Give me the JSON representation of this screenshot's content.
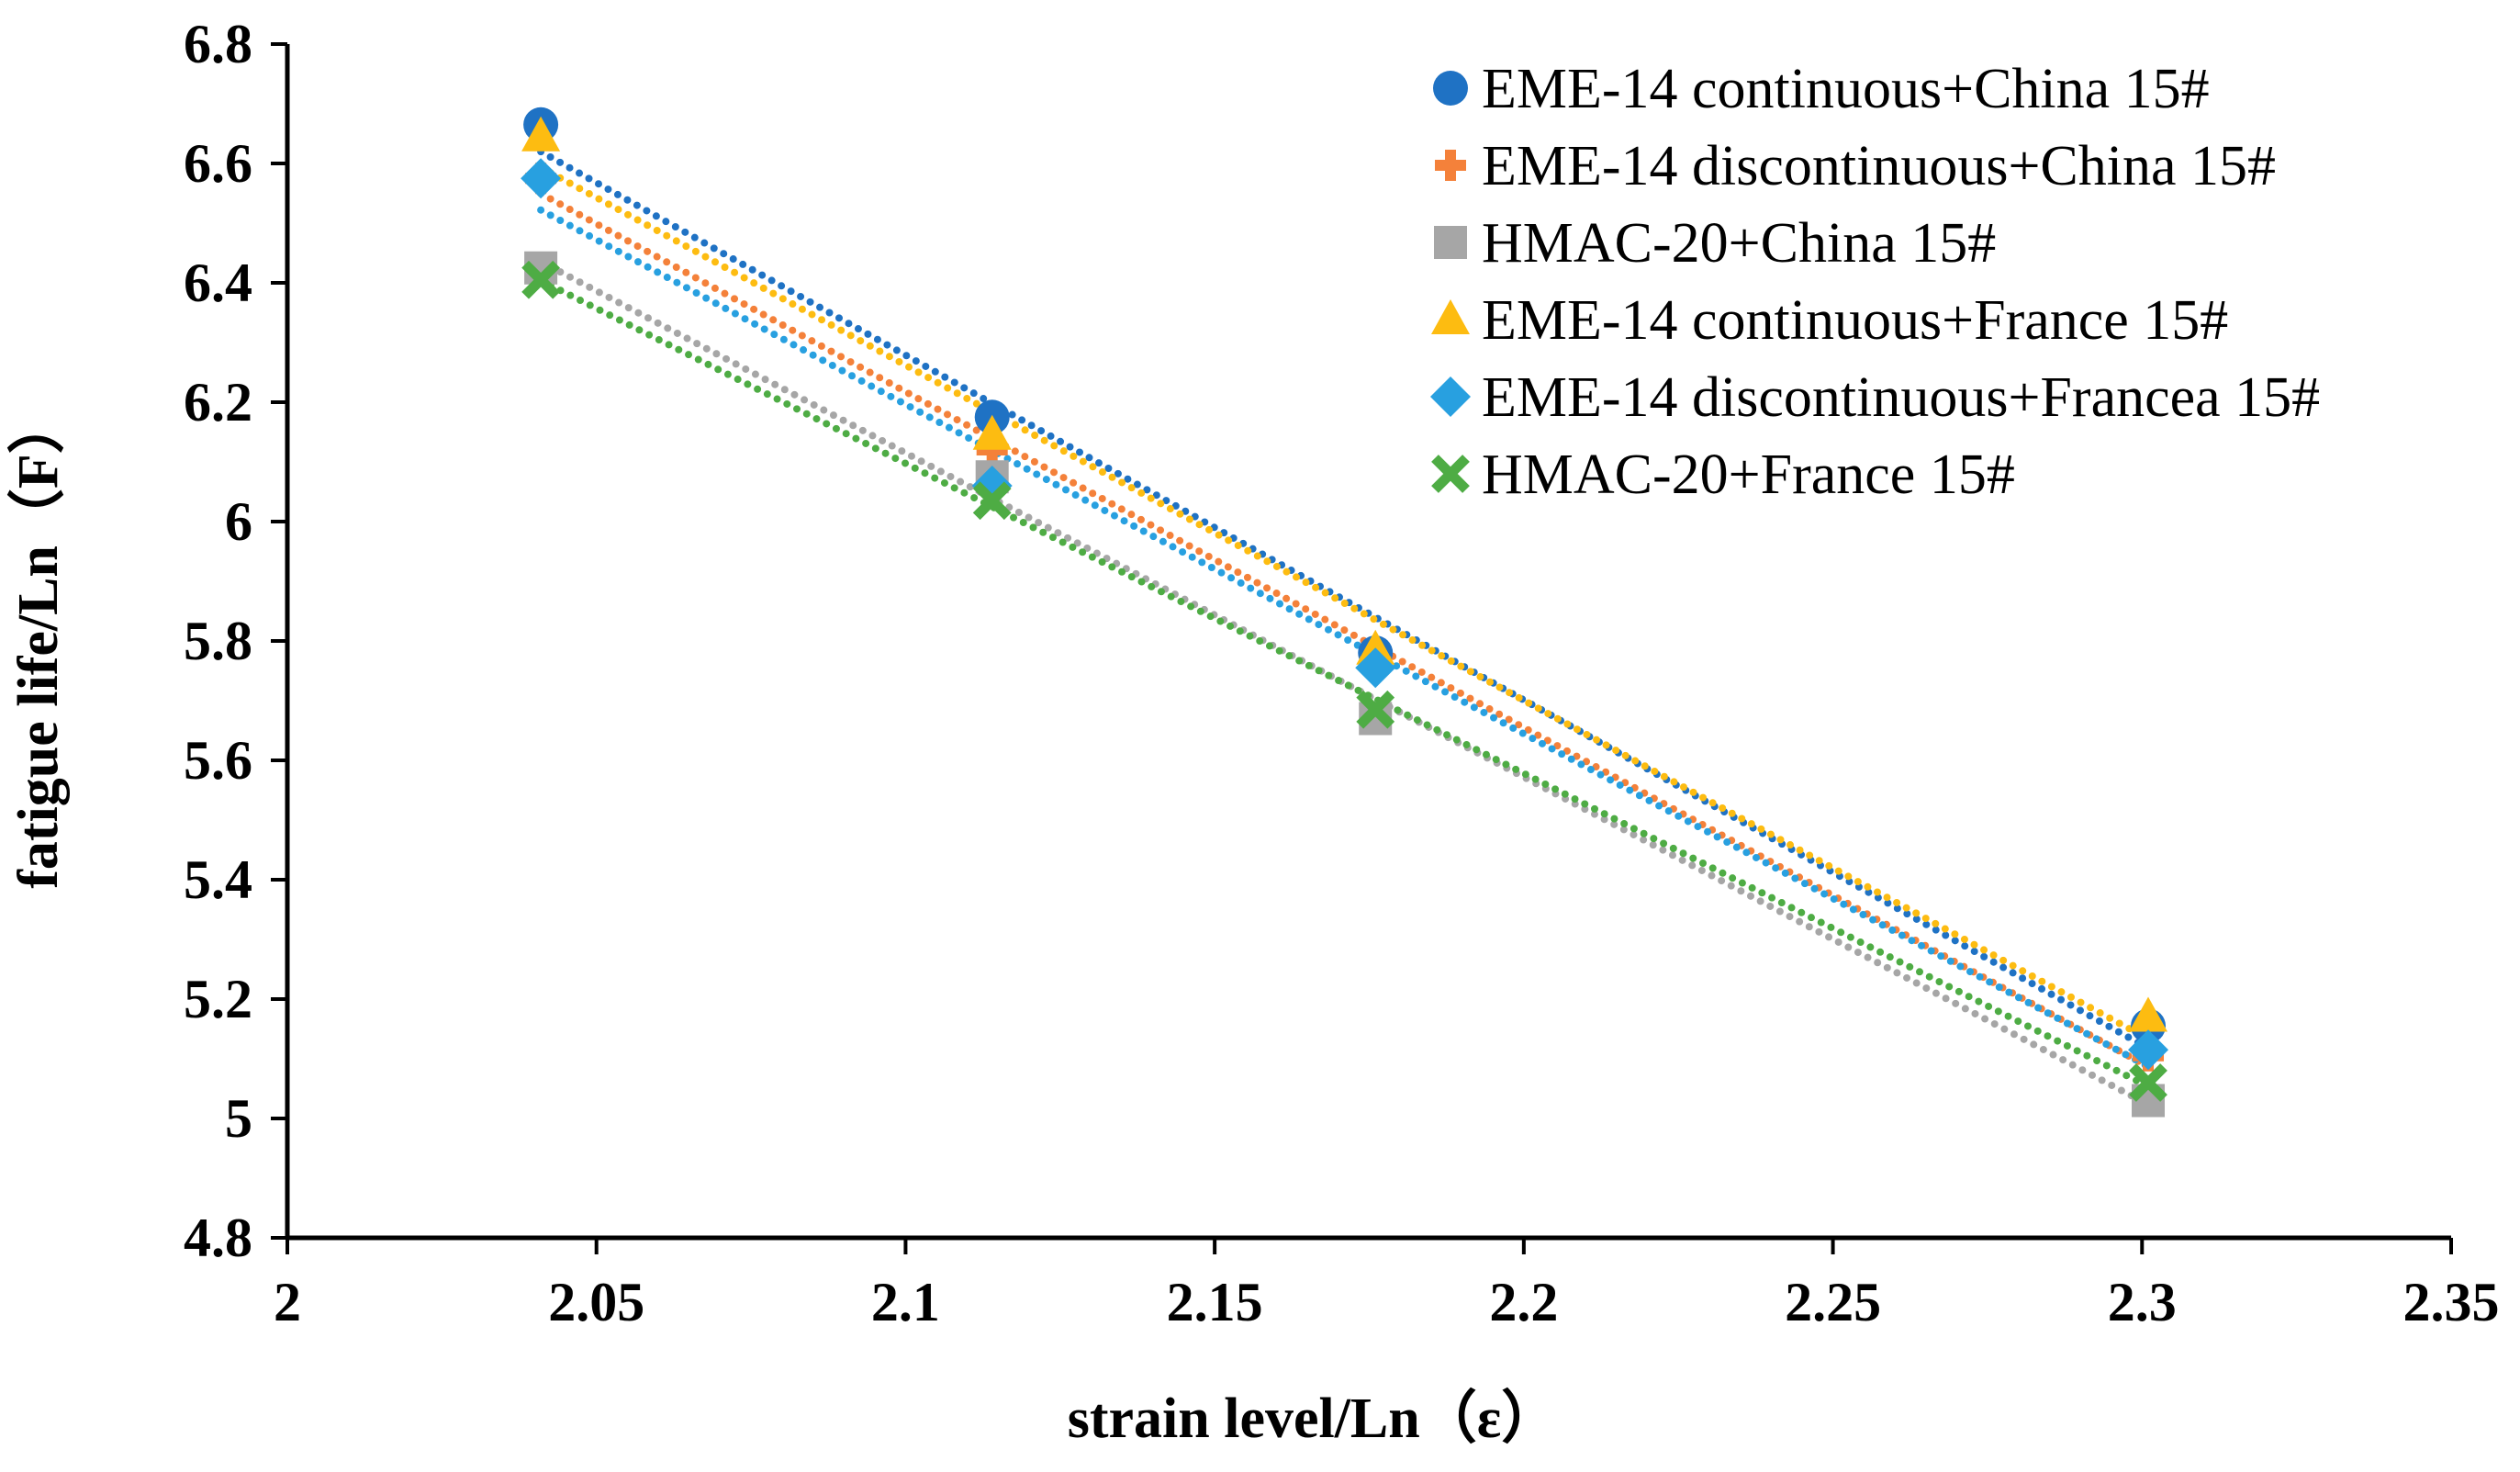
{
  "chart_data": {
    "type": "scatter",
    "title": "",
    "xlabel": "strain level/Ln（ε）",
    "ylabel": "fatigue life/Ln（F）",
    "xlim": [
      2,
      2.35
    ],
    "ylim": [
      4.8,
      6.8
    ],
    "x_ticks": [
      "2",
      "2.05",
      "2.1",
      "2.15",
      "2.2",
      "2.25",
      "2.3",
      "2.35"
    ],
    "y_ticks": [
      "4.8",
      "5",
      "5.2",
      "5.4",
      "5.6",
      "5.8",
      "6",
      "6.2",
      "6.4",
      "6.6",
      "6.8"
    ],
    "x": [
      2.041,
      2.114,
      2.176,
      2.301
    ],
    "legend_position": "top-right",
    "trendline": "linear, dotted",
    "series": [
      {
        "name": "EME-14 continuous+China 15#",
        "marker": "circle",
        "color": "#1f72c4",
        "values": [
          6.665,
          6.175,
          5.78,
          5.155
        ]
      },
      {
        "name": "EME-14 discontinuous+China 15#",
        "marker": "plus",
        "color": "#f4813a",
        "values": [
          6.575,
          6.12,
          5.765,
          5.105
        ]
      },
      {
        "name": "HMAC-20+China 15#",
        "marker": "square",
        "color": "#a6a6a6",
        "values": [
          6.425,
          6.075,
          5.67,
          5.03
        ]
      },
      {
        "name": "EME-14 continuous+France 15#",
        "marker": "triangle",
        "color": "#fdbc11",
        "values": [
          6.645,
          6.145,
          5.785,
          5.17
        ]
      },
      {
        "name": "EME-14 discontinuous+Francea 15#",
        "marker": "diamond",
        "color": "#28a0e0",
        "values": [
          6.575,
          6.06,
          5.755,
          5.115
        ]
      },
      {
        "name": "HMAC-20+France 15#",
        "marker": "cross",
        "color": "#4eac44",
        "values": [
          6.405,
          6.035,
          5.685,
          5.06
        ]
      }
    ]
  }
}
